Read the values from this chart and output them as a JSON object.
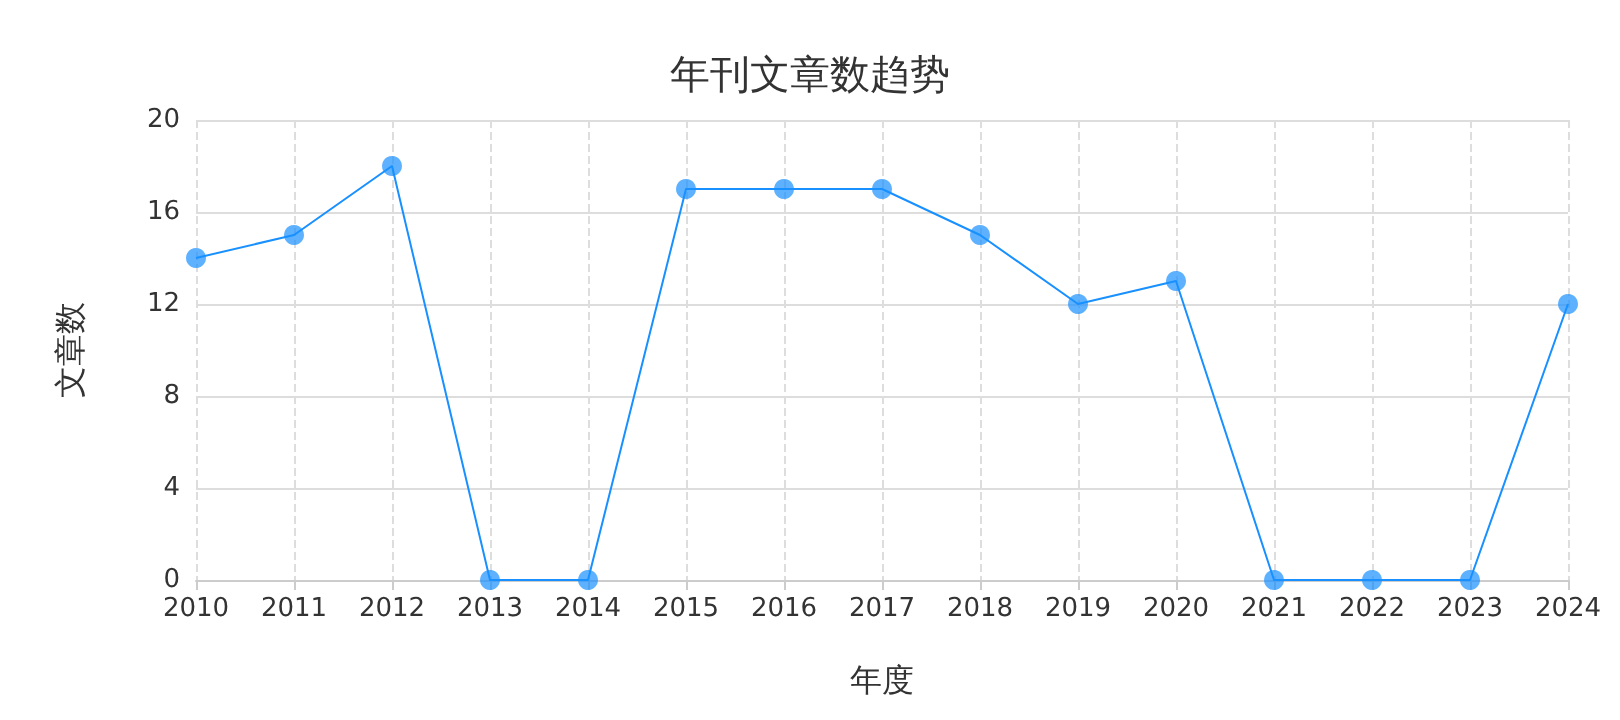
{
  "chart_data": {
    "type": "line",
    "title": "年刊文章数趋势",
    "xlabel": "年度",
    "ylabel": "文章数",
    "categories": [
      "2010",
      "2011",
      "2012",
      "2013",
      "2014",
      "2015",
      "2016",
      "2017",
      "2018",
      "2019",
      "2020",
      "2021",
      "2022",
      "2023",
      "2024"
    ],
    "series": [
      {
        "color": "#1890ff",
        "values": [
          14,
          15,
          18,
          0,
          0,
          17,
          17,
          17,
          15,
          12,
          13,
          0,
          0,
          0,
          12
        ]
      }
    ],
    "ylim": [
      0,
      20
    ],
    "yticks": [
      0,
      4,
      8,
      12,
      16,
      20
    ],
    "grid": true,
    "marker": "circle",
    "line_style": "solid"
  }
}
